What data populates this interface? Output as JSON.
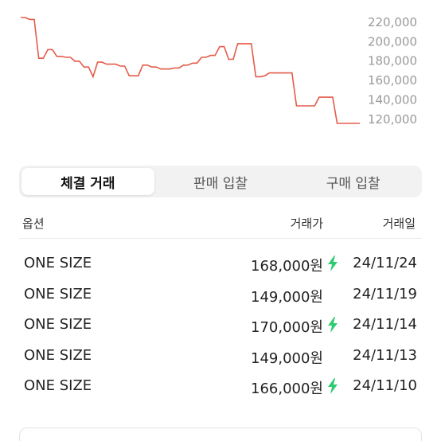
{
  "chart": {
    "line_color": "#e55b4a",
    "y_ticks": [
      "220,000",
      "200,000",
      "180,000",
      "160,000",
      "140,000",
      "120,000"
    ],
    "series": [
      224000,
      224000,
      222000,
      222000,
      182000,
      182000,
      191000,
      191000,
      184000,
      184000,
      183000,
      183000,
      179000,
      179000,
      173000,
      173000,
      163000,
      178000,
      178000,
      176000,
      176000,
      176000,
      174000,
      174000,
      164000,
      164000,
      164000,
      175000,
      175000,
      173000,
      173000,
      171000,
      171000,
      171000,
      172000,
      172000,
      175000,
      175000,
      177000,
      177000,
      183000,
      183000,
      185000,
      185000,
      194000,
      194000,
      181000,
      181000,
      197000,
      197000,
      197000,
      197000,
      163000,
      163000,
      164000,
      167000,
      167000,
      167000,
      167000,
      167000,
      167000,
      133000,
      133000,
      133000,
      133000,
      133000,
      142000,
      142000,
      142000,
      142000,
      115000,
      115000,
      115000,
      115000,
      115000,
      115000
    ]
  },
  "tabs": [
    {
      "label": "체결 거래",
      "active": true
    },
    {
      "label": "판매 입찰",
      "active": false
    },
    {
      "label": "구매 입찰",
      "active": false
    }
  ],
  "table": {
    "headers": {
      "option": "옵션",
      "price": "거래가",
      "date": "거래일"
    },
    "rows": [
      {
        "option": "ONE SIZE",
        "price": "168,000원",
        "date": "24/11/24",
        "fast": true
      },
      {
        "option": "ONE SIZE",
        "price": "149,000원",
        "date": "24/11/19",
        "fast": false
      },
      {
        "option": "ONE SIZE",
        "price": "170,000원",
        "date": "24/11/14",
        "fast": true
      },
      {
        "option": "ONE SIZE",
        "price": "149,000원",
        "date": "24/11/13",
        "fast": false
      },
      {
        "option": "ONE SIZE",
        "price": "166,000원",
        "date": "24/11/10",
        "fast": true
      }
    ],
    "fast_icon": "lightning-bolt-icon",
    "fast_color": "#2ecc71"
  }
}
